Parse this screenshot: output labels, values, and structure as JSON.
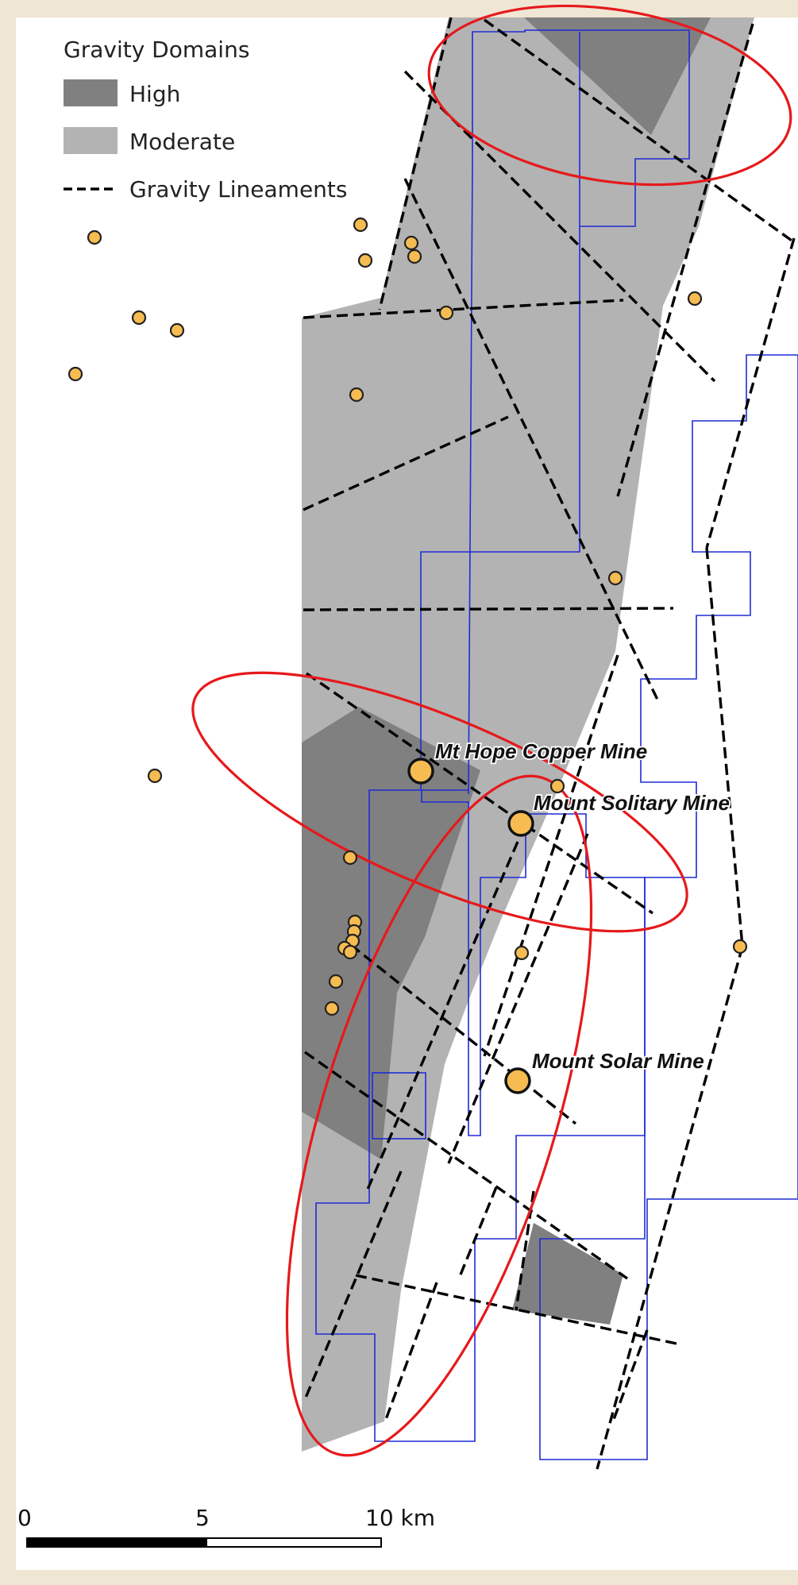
{
  "legend": {
    "title": "Gravity Domains",
    "items": [
      {
        "label": "High",
        "color": "#808080"
      },
      {
        "label": "Moderate",
        "color": "#b3b3b3"
      },
      {
        "label": "Gravity Lineaments",
        "color": "#000000"
      }
    ]
  },
  "colors": {
    "background": "#efe6d3",
    "map": "#ffffff",
    "tenement": "#1f2bd6",
    "target_ellipse": "#e6191b",
    "occurrence": "#f6bc52"
  },
  "mines": [
    {
      "name": "Mt Hope Copper Mine"
    },
    {
      "name": "Mount Solitary Mine"
    },
    {
      "name": "Mount Solar Mine"
    }
  ],
  "scale_bar": {
    "labels": [
      "0",
      "5",
      "10 km"
    ],
    "segments_km": [
      5,
      5
    ]
  }
}
